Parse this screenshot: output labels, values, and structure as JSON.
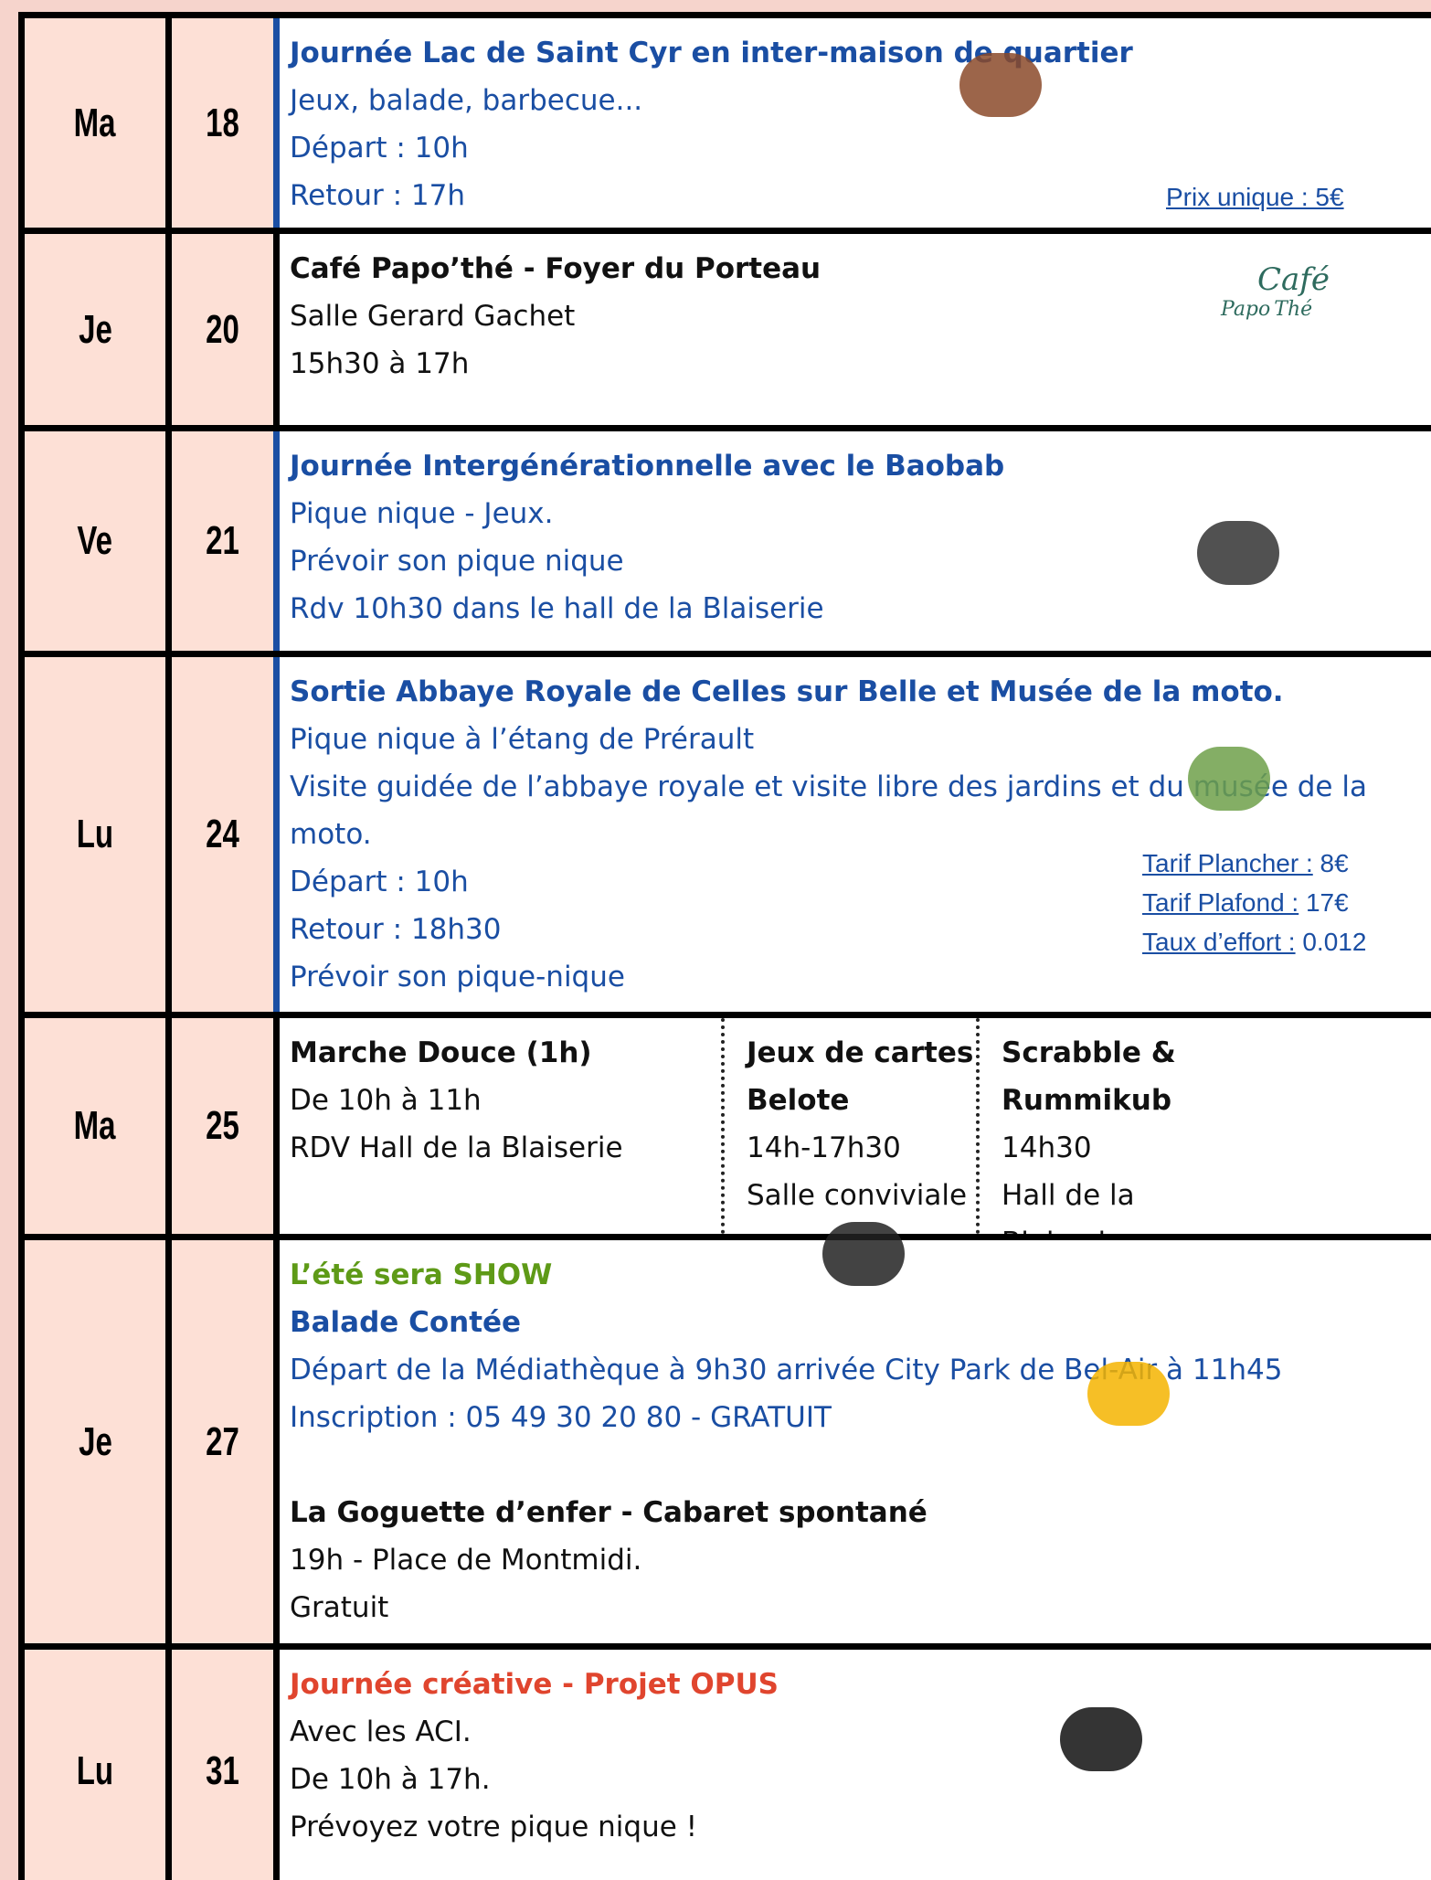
{
  "rows": [
    {
      "day": "Ma",
      "date": "18",
      "blocks": [
        {
          "title": "Journée Lac de Saint Cyr en inter-maison de quartier",
          "title_color": "#1a4ea3",
          "color": "#1a4ea3",
          "lines": [
            "Jeux, balade, barbecue...",
            "Départ : 10h",
            "Retour : 17h"
          ]
        }
      ],
      "notes": [
        {
          "label": "Prix unique : 5€"
        }
      ],
      "accent": "#1a4ea3"
    },
    {
      "day": "Je",
      "date": "20",
      "blocks": [
        {
          "title": "Café Papo’thé - Foyer du Porteau",
          "title_color": "#111111",
          "color": "#111111",
          "lines": [
            "Salle Gerard Gachet",
            "15h30 à 17h"
          ]
        }
      ],
      "logo": [
        "Café",
        "Papo",
        "Thé"
      ]
    },
    {
      "day": "Ve",
      "date": "21",
      "blocks": [
        {
          "title": "Journée Intergénérationnelle avec le Baobab",
          "title_color": "#1a4ea3",
          "color": "#1a4ea3",
          "lines": [
            "Pique nique - Jeux.",
            "Prévoir son pique nique",
            "Rdv 10h30 dans le hall de la Blaiserie"
          ]
        }
      ],
      "accent": "#1a4ea3"
    },
    {
      "day": "Lu",
      "date": "24",
      "blocks": [
        {
          "title": "Sortie Abbaye Royale de Celles sur Belle et Musée de la moto.",
          "title_color": "#1a4ea3",
          "color": "#1a4ea3",
          "lines": [
            "Pique nique à l’étang de Prérault",
            "Visite guidée de l’abbaye royale et visite libre des jardins et du musée de la moto.",
            "Départ : 10h",
            "Retour : 18h30",
            "Prévoir son pique-nique"
          ]
        }
      ],
      "notes": [
        {
          "label": "Tarif Plancher :",
          "value": "8€"
        },
        {
          "label": "Tarif Plafond :",
          "value": "17€"
        },
        {
          "label": "Taux d’effort :",
          "value": "0.012"
        }
      ],
      "accent": "#1a4ea3"
    },
    {
      "day": "Ma",
      "date": "25",
      "columns": [
        {
          "title": "Marche Douce (1h)",
          "title_color": "#111111",
          "color": "#111111",
          "lines": [
            "De 10h à 11h",
            "RDV Hall de la Blaiserie"
          ]
        },
        {
          "title": "Jeux de cartes Belote",
          "title_color": "#111111",
          "color": "#111111",
          "lines": [
            "14h-17h30",
            "Salle conviviale"
          ]
        },
        {
          "title": "Scrabble & Rummikub",
          "title_color": "#111111",
          "color": "#111111",
          "lines": [
            "14h30",
            "Hall de la Blaiserie"
          ]
        }
      ]
    },
    {
      "day": "Je",
      "date": "27",
      "blocks": [
        {
          "title": "L’été sera SHOW",
          "title_color": "#5e9a17",
          "color": "#111111",
          "lines": []
        },
        {
          "title": "Balade Contée",
          "title_color": "#1a4ea3",
          "color": "#1a4ea3",
          "lines": [
            "Départ de la Médiathèque à 9h30 arrivée City Park de Bel-Air à 11h45",
            "Inscription : 05 49 30 20 80 - GRATUIT"
          ]
        },
        {
          "title": "La Goguette d’enfer - Cabaret spontané",
          "title_color": "#111111",
          "color": "#111111",
          "lines": [
            "19h - Place de Montmidi.",
            "Gratuit"
          ]
        }
      ]
    },
    {
      "day": "Lu",
      "date": "31",
      "blocks": [
        {
          "title": "Journée créative - Projet OPUS",
          "title_color": "#e0452e",
          "color": "#111111",
          "lines": [
            "Avec les ACI.",
            "De 10h à 17h.",
            "Prévoyez votre pique nique !"
          ]
        }
      ]
    }
  ]
}
